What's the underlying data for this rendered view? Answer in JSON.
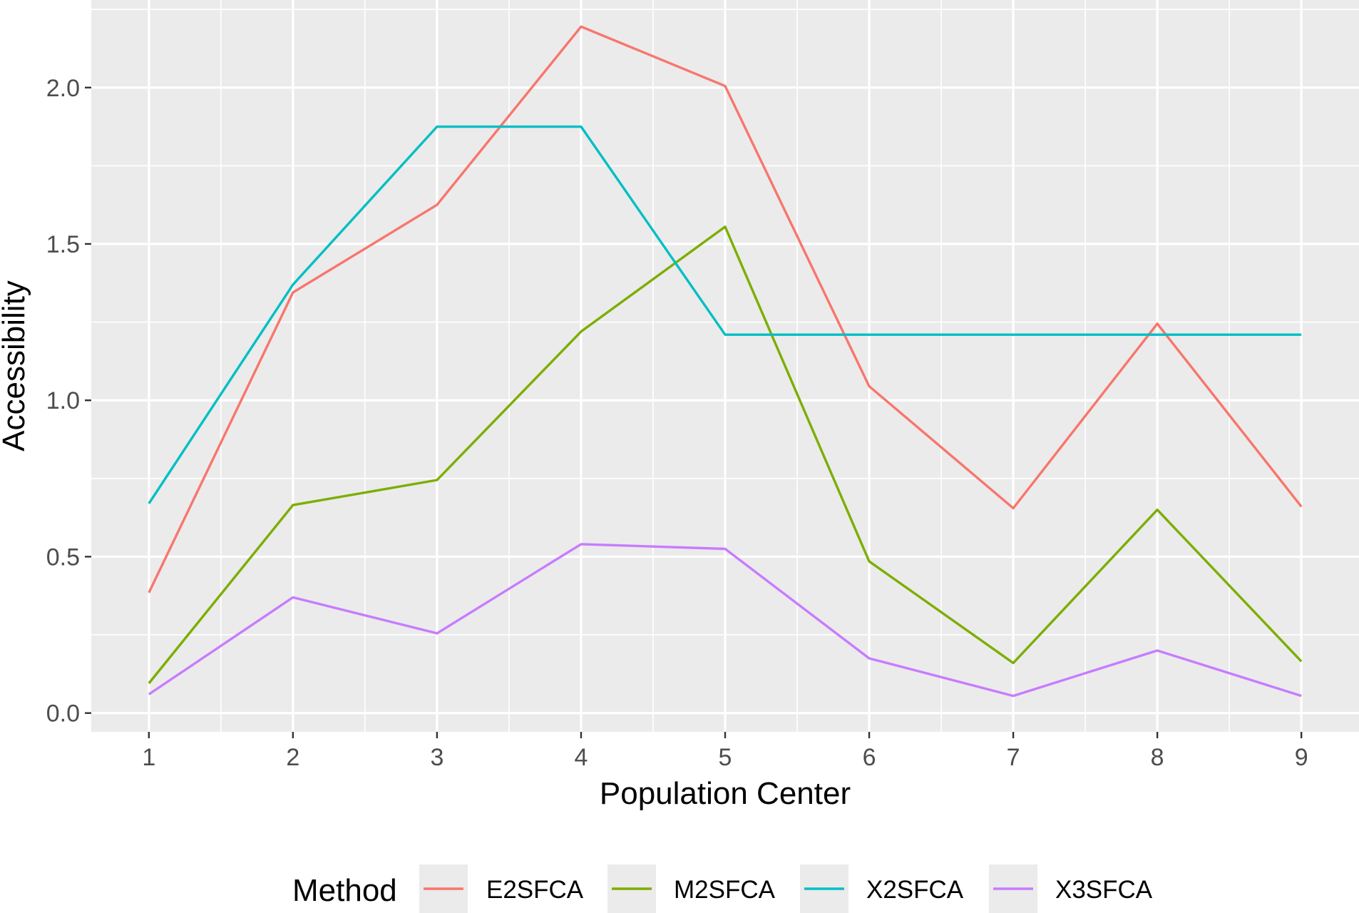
{
  "chart_data": {
    "type": "line",
    "xlabel": "Population Center",
    "ylabel": "Accessibility",
    "x": [
      1,
      2,
      3,
      4,
      5,
      6,
      7,
      8,
      9
    ],
    "x_ticks": [
      "1",
      "2",
      "3",
      "4",
      "5",
      "6",
      "7",
      "8",
      "9"
    ],
    "y_ticks": [
      "0.0",
      "0.5",
      "1.0",
      "1.5",
      "2.0"
    ],
    "xlim": [
      0.6,
      9.4
    ],
    "ylim": [
      -0.06,
      2.28
    ],
    "grid": true,
    "legend": {
      "title": "Method",
      "position": "bottom"
    },
    "series": [
      {
        "name": "E2SFCA",
        "color": "#F8766D",
        "values": [
          0.385,
          1.345,
          1.625,
          2.195,
          2.005,
          1.045,
          0.655,
          1.245,
          0.66
        ]
      },
      {
        "name": "M2SFCA",
        "color": "#7CAE00",
        "values": [
          0.095,
          0.665,
          0.745,
          1.22,
          1.555,
          0.485,
          0.16,
          0.65,
          0.165
        ]
      },
      {
        "name": "X2SFCA",
        "color": "#00BFC4",
        "values": [
          0.67,
          1.37,
          1.875,
          1.875,
          1.21,
          1.21,
          1.21,
          1.21,
          1.21
        ]
      },
      {
        "name": "X3SFCA",
        "color": "#C77CFF",
        "values": [
          0.06,
          0.37,
          0.255,
          0.54,
          0.525,
          0.175,
          0.055,
          0.2,
          0.055
        ]
      }
    ]
  }
}
